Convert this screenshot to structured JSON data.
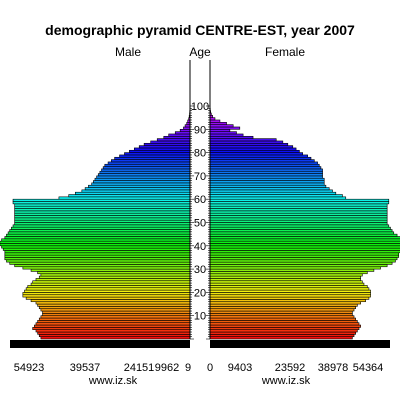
{
  "chart_data": {
    "type": "bar",
    "title": "demographic pyramid CENTRE-EST, year 2007",
    "left_header": "Male",
    "center_header": "Age",
    "right_header": "Female",
    "age_tick_labels": [
      "10",
      "20",
      "30",
      "40",
      "50",
      "60",
      "70",
      "80",
      "90",
      "100"
    ],
    "age_ticks": [
      10,
      20,
      30,
      40,
      50,
      60,
      70,
      80,
      90,
      100
    ],
    "x_ticks_left": [
      "54923",
      "39537",
      "24151",
      "9962",
      "9"
    ],
    "x_ticks_right": [
      "0",
      "9403",
      "23592",
      "38978",
      "54364"
    ],
    "x_tick_values": [
      54923,
      39537,
      24151,
      9962,
      9,
      0,
      9403,
      23592,
      38978,
      54364
    ],
    "source_left": "www.iz.sk",
    "source_right": "www.iz.sk",
    "ages": [
      0,
      1,
      2,
      3,
      4,
      5,
      6,
      7,
      8,
      9,
      10,
      11,
      12,
      13,
      14,
      15,
      16,
      17,
      18,
      19,
      20,
      21,
      22,
      23,
      24,
      25,
      26,
      27,
      28,
      29,
      30,
      31,
      32,
      33,
      34,
      35,
      36,
      37,
      38,
      39,
      40,
      41,
      42,
      43,
      44,
      45,
      46,
      47,
      48,
      49,
      50,
      51,
      52,
      53,
      54,
      55,
      56,
      57,
      58,
      59,
      60,
      61,
      62,
      63,
      64,
      65,
      66,
      67,
      68,
      69,
      70,
      71,
      72,
      73,
      74,
      75,
      76,
      77,
      78,
      79,
      80,
      81,
      82,
      83,
      84,
      85,
      86,
      87,
      88,
      89,
      90,
      91,
      92,
      93,
      94,
      95,
      96,
      97,
      98,
      99,
      100,
      101,
      102,
      103,
      104,
      105
    ],
    "series": [
      {
        "name": "Male",
        "values": [
          45500,
          46000,
          46500,
          47000,
          48000,
          47500,
          47000,
          46500,
          46000,
          45500,
          45000,
          45000,
          45500,
          46000,
          46500,
          47000,
          48500,
          50000,
          51000,
          51000,
          50500,
          50000,
          49500,
          48500,
          48000,
          47000,
          46000,
          45500,
          46500,
          48500,
          51000,
          53500,
          55000,
          56000,
          56500,
          56500,
          56500,
          56500,
          57000,
          57500,
          58000,
          58000,
          57500,
          56500,
          56000,
          55500,
          55000,
          54500,
          54000,
          53500,
          53500,
          53500,
          53500,
          53500,
          53500,
          53500,
          53500,
          53500,
          54000,
          54000,
          40000,
          37000,
          35000,
          33000,
          32000,
          31000,
          30000,
          29500,
          29000,
          28500,
          28000,
          27500,
          27000,
          26500,
          26000,
          25000,
          24000,
          23000,
          21500,
          20000,
          18500,
          17000,
          15500,
          14000,
          12000,
          10000,
          8000,
          6500,
          4500,
          3000,
          2000,
          1500,
          1000,
          700,
          400,
          250,
          150,
          100,
          50,
          30,
          20,
          10,
          5,
          0,
          0,
          0
        ]
      },
      {
        "name": "Female",
        "values": [
          43000,
          43500,
          44000,
          44500,
          45000,
          45500,
          45000,
          44500,
          44000,
          43500,
          43000,
          43000,
          43500,
          44000,
          44500,
          45500,
          47000,
          48000,
          48500,
          48500,
          48500,
          48000,
          47500,
          46500,
          46000,
          45500,
          45500,
          46000,
          47500,
          49500,
          51500,
          53500,
          55000,
          56000,
          56500,
          57000,
          57000,
          57500,
          58000,
          58500,
          59000,
          59000,
          58500,
          57500,
          56500,
          55500,
          55000,
          54500,
          54000,
          53500,
          53500,
          53500,
          53500,
          53500,
          53500,
          53500,
          53500,
          53500,
          54000,
          54000,
          41000,
          40000,
          38000,
          37000,
          36000,
          35000,
          34500,
          34500,
          34500,
          34000,
          34000,
          34000,
          34000,
          33500,
          33000,
          32500,
          31500,
          30500,
          29500,
          28000,
          27000,
          26000,
          25000,
          23500,
          22000,
          20000,
          13000,
          10000,
          8000,
          6000,
          9000,
          7000,
          5000,
          3000,
          1500,
          800,
          400,
          200,
          100,
          50,
          30,
          15,
          8,
          0,
          0,
          0
        ]
      }
    ],
    "colors": {
      "bar_outline": "#000000",
      "axis_band": "#ffffff",
      "background": "#ffffff",
      "baseline": "#000000"
    },
    "legend": "none",
    "grid": false
  }
}
